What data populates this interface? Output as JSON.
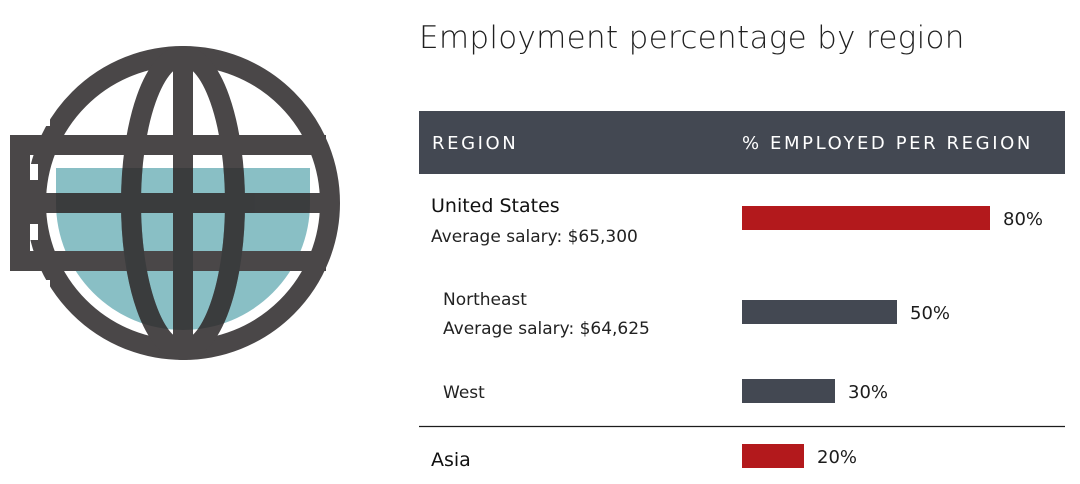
{
  "chart_data": {
    "type": "bar",
    "orientation": "horizontal",
    "title": "Employment percentage by region",
    "columns": [
      "REGION",
      "% EMPLOYED PER REGION"
    ],
    "xlim": [
      0,
      100
    ],
    "unit_suffix": "%",
    "rows": [
      {
        "name": "United States",
        "detail": "Average salary: $65,300",
        "value": 80,
        "label": "80%",
        "level": 0,
        "color": "#b3191c"
      },
      {
        "name": "Northeast",
        "detail": "Average salary: $64,625",
        "value": 50,
        "label": "50%",
        "level": 1,
        "color": "#434852"
      },
      {
        "name": "West",
        "detail": "",
        "value": 30,
        "label": "30%",
        "level": 1,
        "color": "#434852"
      },
      {
        "name": "Asia",
        "detail": "",
        "value": 20,
        "label": "20%",
        "level": 0,
        "color": "#b3191c"
      }
    ]
  },
  "colors": {
    "header_bg": "#434852",
    "highlight": "#b3191c",
    "secondary": "#434852",
    "globe_stroke": "#4a4748",
    "globe_fill": "#89bfc5"
  },
  "icons": {
    "globe": "globe-icon"
  }
}
